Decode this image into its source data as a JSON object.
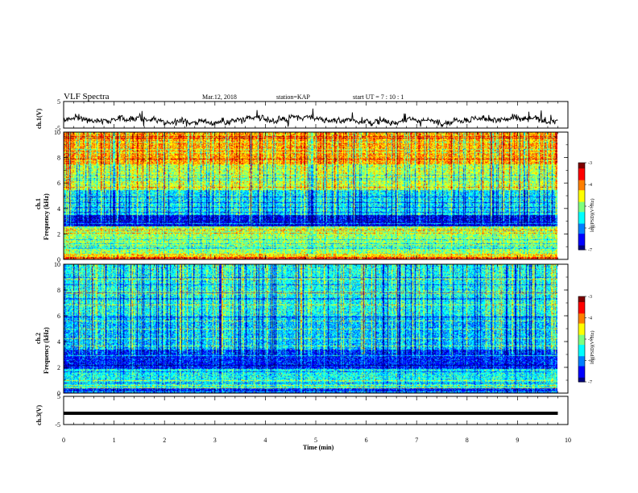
{
  "header": {
    "title": "VLF Spectra",
    "date": "Mar.12, 2018",
    "station": "station=KAP",
    "start": "start UT =  7 : 10 : 1"
  },
  "chart_data": [
    {
      "type": "line",
      "panel": "ch1-waveform",
      "ylabel": "ch.1(V)",
      "yticks": [
        "5",
        "-5"
      ],
      "ylim": [
        -5,
        5
      ],
      "x_unit": "min",
      "xlim": [
        0,
        10
      ],
      "x_end": 9.8,
      "note_signal": "noisy waveform fluctuating around about -2 V",
      "level": -2
    },
    {
      "type": "heatmap",
      "panel": "ch1-spectrogram",
      "ylabel": "ch.1",
      "ylabel2": "Frequency (kHz)",
      "yticks": [
        "0",
        "2",
        "4",
        "6",
        "8",
        "10"
      ],
      "ylim": [
        0,
        10
      ],
      "xlim": [
        0,
        10
      ],
      "x_end": 9.8,
      "colorbar": {
        "label": "log(PSD)(V²/Hz)",
        "ticks": [
          "-3",
          "-4",
          "-5",
          "-6",
          "-7"
        ],
        "range": [
          -7,
          -3
        ]
      },
      "bands": [
        {
          "f": [
            0.0,
            0.5
          ],
          "level": -4.4
        },
        {
          "f": [
            0.5,
            2.6
          ],
          "level": -4.9
        },
        {
          "f": [
            2.6,
            3.5
          ],
          "level": -6.6
        },
        {
          "f": [
            3.5,
            5.5
          ],
          "level": -5.6
        },
        {
          "f": [
            5.5,
            7.5
          ],
          "level": -4.8
        },
        {
          "f": [
            7.5,
            10.0
          ],
          "level": -4.2
        }
      ]
    },
    {
      "type": "heatmap",
      "panel": "ch2-spectrogram",
      "ylabel": "ch.2",
      "ylabel2": "Frequency (kHz)",
      "yticks": [
        "0",
        "2",
        "4",
        "6",
        "8",
        "10"
      ],
      "ylim": [
        0,
        10
      ],
      "xlim": [
        0,
        10
      ],
      "x_end": 9.8,
      "colorbar": {
        "label": "log(PSD)(V²/Hz)",
        "ticks": [
          "-3",
          "-4",
          "-5",
          "-6",
          "-7"
        ],
        "range": [
          -7,
          -3
        ]
      },
      "bands": [
        {
          "f": [
            0.0,
            0.4
          ],
          "level": -6.4
        },
        {
          "f": [
            0.4,
            1.9
          ],
          "level": -5.5
        },
        {
          "f": [
            1.9,
            3.4
          ],
          "level": -6.4
        },
        {
          "f": [
            3.4,
            6.0
          ],
          "level": -5.8
        },
        {
          "f": [
            6.0,
            10.0
          ],
          "level": -5.5
        }
      ]
    },
    {
      "type": "line",
      "panel": "ch3-waveform",
      "ylabel": "ch.3(V)",
      "yticks": [
        "5",
        "-5"
      ],
      "ylim": [
        -5,
        5
      ],
      "xlim": [
        0,
        10
      ],
      "x_end": 9.8,
      "level": -1
    }
  ],
  "xaxis": {
    "label": "Time (min)",
    "ticks": [
      "0",
      "1",
      "2",
      "3",
      "4",
      "5",
      "6",
      "7",
      "8",
      "9",
      "10"
    ]
  },
  "colors": {
    "jet": [
      "#00007f",
      "#0000ff",
      "#007fff",
      "#00ffff",
      "#7fff7f",
      "#ffff00",
      "#ff7f00",
      "#ff0000",
      "#7f0000"
    ]
  }
}
